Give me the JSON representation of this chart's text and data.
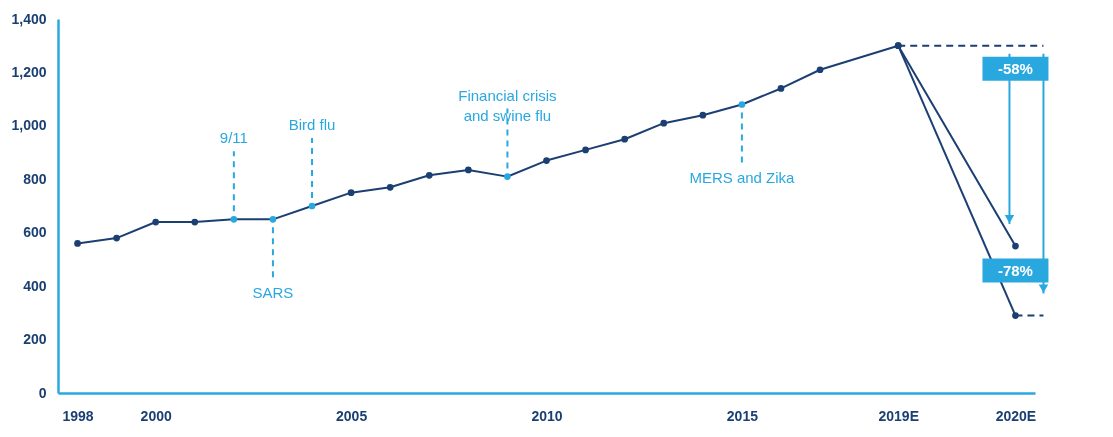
{
  "chart_data": {
    "type": "line",
    "categories": [
      "1998",
      null,
      "2000",
      null,
      null,
      null,
      null,
      "2005",
      null,
      null,
      null,
      null,
      "2010",
      null,
      null,
      null,
      null,
      "2015",
      null,
      null,
      null,
      "2019E",
      null,
      null,
      "2020E"
    ],
    "series": [
      {
        "color": "#1b3f72",
        "values": [
          560,
          580,
          640,
          640,
          650,
          650,
          700,
          750,
          770,
          815,
          835,
          810,
          870,
          910,
          950,
          1010,
          1040,
          1080,
          1140,
          1210,
          null,
          1300,
          null,
          null,
          550
        ],
        "colors": [
          "#1b3f72",
          "#1b3f72",
          "#1b3f72",
          "#1b3f72",
          "#29a8e0",
          "#29a8e0",
          "#29a8e0",
          "#1b3f72",
          "#1b3f72",
          "#1b3f72",
          "#1b3f72",
          "#29a8e0",
          "#1b3f72",
          "#1b3f72",
          "#1b3f72",
          "#1b3f72",
          "#1b3f72",
          "#29a8e0",
          "#1b3f72",
          "#1b3f72",
          null,
          "#1b3f72",
          null,
          null,
          "#1b3f72"
        ]
      },
      {
        "color": "#1b3f72",
        "values": [
          null,
          null,
          null,
          null,
          null,
          null,
          null,
          null,
          null,
          null,
          null,
          null,
          null,
          null,
          null,
          null,
          null,
          null,
          null,
          null,
          null,
          1300,
          null,
          null,
          290
        ]
      }
    ],
    "ylim": [
      0,
      1400
    ],
    "yticks": [
      0,
      200,
      400,
      600,
      800,
      {
        "value": 1000,
        "label": "1,000"
      },
      {
        "value": 1200,
        "label": "1,200"
      },
      {
        "value": 1400,
        "label": "1,400"
      }
    ],
    "marker": "circle",
    "line_style": "solid",
    "grid": false,
    "annotations": [
      {
        "text": "9/11",
        "y": 650
      },
      {
        "text": "SARS",
        "y": 650
      },
      {
        "text": "Bird flu",
        "y": 700
      },
      {
        "text": "Financial crisis and swine flu",
        "y": 810
      },
      {
        "text": "MERS and Zika",
        "x": "2015",
        "y": 1080
      },
      {
        "text": "-58%",
        "x": "2019E",
        "y": 1300
      },
      {
        "text": "-78%",
        "x": "2020E",
        "y": 290
      }
    ]
  }
}
